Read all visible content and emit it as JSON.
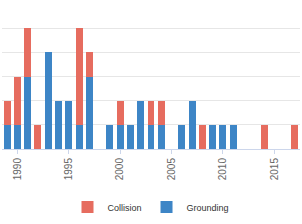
{
  "chart_data": {
    "type": "bar",
    "stacked": true,
    "categories": [
      null,
      "1990",
      null,
      null,
      null,
      null,
      "1995",
      null,
      null,
      null,
      null,
      "2000",
      null,
      null,
      null,
      null,
      "2005",
      null,
      null,
      null,
      null,
      "2010",
      null,
      null,
      null,
      null,
      "2015",
      null,
      null
    ],
    "series": [
      {
        "name": "Collision",
        "color": "#e66c5f",
        "values": [
          1,
          2,
          2,
          1,
          0,
          0,
          0,
          4,
          1,
          0,
          0,
          1,
          0,
          0,
          1,
          1,
          0,
          0,
          0,
          1,
          0,
          0,
          0,
          0,
          0,
          1,
          0,
          0,
          1
        ]
      },
      {
        "name": "Grounding",
        "color": "#3d85c6",
        "values": [
          1,
          1,
          3,
          0,
          4,
          2,
          2,
          1,
          3,
          0,
          1,
          1,
          1,
          2,
          1,
          1,
          0,
          1,
          2,
          0,
          1,
          1,
          1,
          0,
          0,
          0,
          0,
          0,
          0
        ]
      }
    ],
    "ylim": [
      0,
      6
    ],
    "yticks": [
      0,
      1,
      2,
      3,
      4,
      5,
      6
    ],
    "grid": true,
    "legend": "bottom",
    "tick_labels": "x"
  }
}
